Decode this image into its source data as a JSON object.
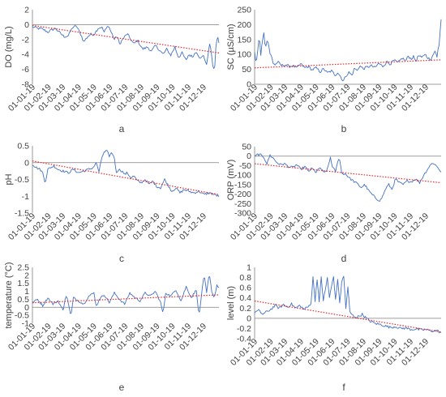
{
  "x_tick_labels": [
    "01-01-19",
    "01-02-19",
    "01-03-19",
    "01-04-19",
    "01-05-19",
    "01-06-19",
    "01-07-19",
    "01-08-19",
    "01-09-19",
    "01-10-19",
    "01-11-19",
    "01-12-19"
  ],
  "colors": {
    "series": "#4472c4",
    "trend": "#e8262a",
    "axis": "#7f7f7f",
    "text": "#404040"
  },
  "chart_data": [
    {
      "panel_label": "a",
      "type": "line",
      "ylabel": "DO (mg/L)",
      "ylim": [
        -8,
        2
      ],
      "yticks": [
        2,
        0,
        -2,
        -4,
        -6,
        -8
      ],
      "keypoints": [
        [
          0,
          -0.3
        ],
        [
          10,
          -0.5
        ],
        [
          20,
          -0.6
        ],
        [
          30,
          -1.0
        ],
        [
          38,
          -0.7
        ],
        [
          45,
          -0.5
        ],
        [
          55,
          -1.2
        ],
        [
          62,
          -1.6
        ],
        [
          70,
          -1.5
        ],
        [
          78,
          -0.4
        ],
        [
          86,
          -0.2
        ],
        [
          95,
          -1.4
        ],
        [
          100,
          -2.3
        ],
        [
          108,
          -1.6
        ],
        [
          114,
          -1.3
        ],
        [
          120,
          -1.3
        ],
        [
          128,
          -0.5
        ],
        [
          135,
          -0.3
        ],
        [
          140,
          -1.0
        ],
        [
          148,
          -0.1
        ],
        [
          155,
          -1.2
        ],
        [
          160,
          -2.0
        ],
        [
          165,
          -1.5
        ],
        [
          170,
          -2.6
        ],
        [
          178,
          -1.8
        ],
        [
          185,
          -1.2
        ],
        [
          190,
          -1.8
        ],
        [
          198,
          -2.6
        ],
        [
          205,
          -2.1
        ],
        [
          215,
          -3.3
        ],
        [
          225,
          -3.0
        ],
        [
          232,
          -3.6
        ],
        [
          240,
          -2.8
        ],
        [
          248,
          -3.4
        ],
        [
          255,
          -4.0
        ],
        [
          262,
          -3.3
        ],
        [
          270,
          -4.1
        ],
        [
          278,
          -3.0
        ],
        [
          285,
          -4.4
        ],
        [
          292,
          -3.8
        ],
        [
          300,
          -4.8
        ],
        [
          305,
          -4.0
        ],
        [
          312,
          -4.3
        ],
        [
          320,
          -3.6
        ],
        [
          328,
          -4.6
        ],
        [
          334,
          -4.1
        ],
        [
          340,
          -5.5
        ],
        [
          344,
          -3.2
        ],
        [
          347,
          -2.5
        ],
        [
          350,
          -4.5
        ],
        [
          353,
          -5.9
        ],
        [
          356,
          -5.6
        ],
        [
          359,
          -2.0
        ],
        [
          362,
          -1.8
        ],
        [
          364,
          -2.4
        ]
      ],
      "trend": [
        [
          0,
          -0.1
        ],
        [
          364,
          -3.8
        ]
      ]
    },
    {
      "panel_label": "b",
      "type": "line",
      "ylabel": "SC (µS/cm)",
      "ylim": [
        0,
        250
      ],
      "yticks": [
        250,
        200,
        150,
        100,
        50,
        0
      ],
      "keypoints": [
        [
          0,
          105
        ],
        [
          3,
          70
        ],
        [
          6,
          110
        ],
        [
          9,
          165
        ],
        [
          12,
          95
        ],
        [
          15,
          150
        ],
        [
          18,
          170
        ],
        [
          21,
          125
        ],
        [
          24,
          145
        ],
        [
          27,
          140
        ],
        [
          30,
          100
        ],
        [
          33,
          95
        ],
        [
          36,
          72
        ],
        [
          40,
          65
        ],
        [
          45,
          75
        ],
        [
          52,
          63
        ],
        [
          60,
          65
        ],
        [
          68,
          60
        ],
        [
          75,
          62
        ],
        [
          82,
          55
        ],
        [
          90,
          68
        ],
        [
          98,
          55
        ],
        [
          105,
          60
        ],
        [
          112,
          48
        ],
        [
          120,
          55
        ],
        [
          128,
          42
        ],
        [
          135,
          52
        ],
        [
          142,
          38
        ],
        [
          150,
          45
        ],
        [
          157,
          30
        ],
        [
          162,
          40
        ],
        [
          168,
          25
        ],
        [
          173,
          10
        ],
        [
          178,
          28
        ],
        [
          184,
          40
        ],
        [
          190,
          30
        ],
        [
          195,
          55
        ],
        [
          200,
          45
        ],
        [
          205,
          62
        ],
        [
          212,
          52
        ],
        [
          220,
          58
        ],
        [
          228,
          62
        ],
        [
          235,
          55
        ],
        [
          242,
          70
        ],
        [
          250,
          60
        ],
        [
          258,
          75
        ],
        [
          265,
          68
        ],
        [
          272,
          80
        ],
        [
          280,
          72
        ],
        [
          288,
          88
        ],
        [
          295,
          78
        ],
        [
          300,
          95
        ],
        [
          305,
          85
        ],
        [
          310,
          92
        ],
        [
          315,
          78
        ],
        [
          320,
          96
        ],
        [
          326,
          88
        ],
        [
          332,
          102
        ],
        [
          338,
          90
        ],
        [
          344,
          78
        ],
        [
          348,
          100
        ],
        [
          352,
          115
        ],
        [
          356,
          90
        ],
        [
          359,
          130
        ],
        [
          361,
          140
        ],
        [
          363,
          215
        ],
        [
          364,
          220
        ]
      ],
      "trend": [
        [
          0,
          55
        ],
        [
          364,
          82
        ]
      ]
    },
    {
      "panel_label": "c",
      "type": "line",
      "ylabel": "pH",
      "ylim": [
        -1.5,
        0.5
      ],
      "yticks": [
        0.5,
        0,
        -0.5,
        -1,
        -1.5
      ],
      "keypoints": [
        [
          0,
          -0.05
        ],
        [
          8,
          -0.15
        ],
        [
          15,
          -0.2
        ],
        [
          20,
          -0.3
        ],
        [
          25,
          -0.6
        ],
        [
          30,
          -0.2
        ],
        [
          35,
          -0.15
        ],
        [
          42,
          -0.1
        ],
        [
          50,
          -0.2
        ],
        [
          60,
          -0.25
        ],
        [
          70,
          -0.3
        ],
        [
          80,
          -0.2
        ],
        [
          90,
          -0.3
        ],
        [
          100,
          -0.25
        ],
        [
          110,
          -0.2
        ],
        [
          118,
          -0.15
        ],
        [
          125,
          0.0
        ],
        [
          130,
          -0.3
        ],
        [
          135,
          0.15
        ],
        [
          140,
          0.3
        ],
        [
          145,
          0.35
        ],
        [
          150,
          0.2
        ],
        [
          155,
          0.3
        ],
        [
          160,
          0.15
        ],
        [
          163,
          -0.3
        ],
        [
          168,
          -0.2
        ],
        [
          175,
          -0.25
        ],
        [
          180,
          -0.35
        ],
        [
          185,
          -0.3
        ],
        [
          192,
          -0.45
        ],
        [
          198,
          -0.4
        ],
        [
          205,
          -0.55
        ],
        [
          212,
          -0.6
        ],
        [
          220,
          -0.5
        ],
        [
          228,
          -0.65
        ],
        [
          235,
          -0.55
        ],
        [
          242,
          -0.7
        ],
        [
          250,
          -0.75
        ],
        [
          258,
          -0.5
        ],
        [
          266,
          -0.7
        ],
        [
          272,
          -0.85
        ],
        [
          280,
          -0.75
        ],
        [
          288,
          -0.9
        ],
        [
          296,
          -0.8
        ],
        [
          305,
          -0.85
        ],
        [
          315,
          -0.9
        ],
        [
          325,
          -0.85
        ],
        [
          335,
          -0.95
        ],
        [
          345,
          -0.9
        ],
        [
          355,
          -0.95
        ],
        [
          364,
          -1.0
        ]
      ],
      "trend": [
        [
          0,
          0.05
        ],
        [
          364,
          -0.95
        ]
      ]
    },
    {
      "panel_label": "d",
      "type": "line",
      "ylabel": "ORP (mV)",
      "ylim": [
        -300,
        50
      ],
      "yticks": [
        50,
        0,
        -50,
        -100,
        -150,
        -200,
        -250,
        -300
      ],
      "keypoints": [
        [
          0,
          -5
        ],
        [
          6,
          10
        ],
        [
          12,
          5
        ],
        [
          18,
          -5
        ],
        [
          24,
          -40
        ],
        [
          30,
          5
        ],
        [
          36,
          -10
        ],
        [
          42,
          -30
        ],
        [
          50,
          -45
        ],
        [
          58,
          -40
        ],
        [
          66,
          -55
        ],
        [
          75,
          -60
        ],
        [
          82,
          -45
        ],
        [
          90,
          -70
        ],
        [
          98,
          -55
        ],
        [
          105,
          -80
        ],
        [
          112,
          -65
        ],
        [
          120,
          -85
        ],
        [
          128,
          -60
        ],
        [
          135,
          -90
        ],
        [
          142,
          -70
        ],
        [
          148,
          -5
        ],
        [
          152,
          -60
        ],
        [
          158,
          -80
        ],
        [
          165,
          0
        ],
        [
          170,
          -90
        ],
        [
          178,
          -95
        ],
        [
          185,
          -115
        ],
        [
          192,
          -130
        ],
        [
          200,
          -145
        ],
        [
          208,
          -165
        ],
        [
          215,
          -150
        ],
        [
          222,
          -180
        ],
        [
          230,
          -205
        ],
        [
          238,
          -225
        ],
        [
          245,
          -235
        ],
        [
          250,
          -210
        ],
        [
          256,
          -170
        ],
        [
          262,
          -150
        ],
        [
          268,
          -175
        ],
        [
          275,
          -120
        ],
        [
          282,
          -140
        ],
        [
          290,
          -150
        ],
        [
          298,
          -130
        ],
        [
          306,
          -135
        ],
        [
          314,
          -120
        ],
        [
          322,
          -140
        ],
        [
          330,
          -100
        ],
        [
          336,
          -75
        ],
        [
          342,
          -50
        ],
        [
          348,
          -35
        ],
        [
          352,
          -45
        ],
        [
          358,
          -60
        ],
        [
          364,
          -85
        ]
      ],
      "trend": [
        [
          0,
          -40
        ],
        [
          364,
          -140
        ]
      ]
    },
    {
      "panel_label": "e",
      "type": "line",
      "ylabel": "temperature (°C)",
      "ylim": [
        -1,
        2.5
      ],
      "yticks": [
        2.5,
        2,
        1.5,
        1,
        0.5,
        0,
        -0.5,
        -1
      ],
      "keypoints": [
        [
          0,
          0.3
        ],
        [
          10,
          0.5
        ],
        [
          20,
          0.1
        ],
        [
          30,
          0.6
        ],
        [
          40,
          0.2
        ],
        [
          50,
          0.4
        ],
        [
          60,
          -0.2
        ],
        [
          65,
          0.8
        ],
        [
          70,
          0.3
        ],
        [
          75,
          -0.6
        ],
        [
          80,
          0.6
        ],
        [
          90,
          0.4
        ],
        [
          100,
          0.2
        ],
        [
          110,
          0.7
        ],
        [
          120,
          0.9
        ],
        [
          125,
          0.0
        ],
        [
          130,
          0.5
        ],
        [
          140,
          0.8
        ],
        [
          150,
          0.3
        ],
        [
          160,
          0.9
        ],
        [
          170,
          0.5
        ],
        [
          180,
          0.2
        ],
        [
          190,
          0.9
        ],
        [
          200,
          0.6
        ],
        [
          210,
          0.4
        ],
        [
          220,
          0.9
        ],
        [
          230,
          0.7
        ],
        [
          240,
          1.0
        ],
        [
          250,
          0.3
        ],
        [
          255,
          -0.4
        ],
        [
          260,
          0.9
        ],
        [
          270,
          0.7
        ],
        [
          280,
          1.1
        ],
        [
          290,
          0.4
        ],
        [
          300,
          1.3
        ],
        [
          310,
          0.6
        ],
        [
          320,
          1.1
        ],
        [
          325,
          -0.6
        ],
        [
          330,
          0.8
        ],
        [
          335,
          2.0
        ],
        [
          340,
          0.9
        ],
        [
          345,
          2.1
        ],
        [
          350,
          1.0
        ],
        [
          355,
          0.6
        ],
        [
          360,
          1.4
        ],
        [
          364,
          1.2
        ]
      ],
      "trend": [
        [
          0,
          0.28
        ],
        [
          364,
          0.78
        ]
      ]
    },
    {
      "panel_label": "f",
      "type": "line",
      "ylabel": "level (m)",
      "ylim": [
        -0.4,
        1
      ],
      "yticks": [
        1,
        0.8,
        0.6,
        0.4,
        0.2,
        0,
        -0.2,
        -0.4
      ],
      "keypoints": [
        [
          0,
          0.12
        ],
        [
          8,
          0.15
        ],
        [
          16,
          0.08
        ],
        [
          24,
          0.13
        ],
        [
          32,
          0.18
        ],
        [
          40,
          0.25
        ],
        [
          48,
          0.2
        ],
        [
          56,
          0.27
        ],
        [
          64,
          0.22
        ],
        [
          72,
          0.28
        ],
        [
          80,
          0.2
        ],
        [
          88,
          0.25
        ],
        [
          96,
          0.18
        ],
        [
          104,
          0.22
        ],
        [
          110,
          0.3
        ],
        [
          114,
          0.8
        ],
        [
          118,
          0.35
        ],
        [
          122,
          0.78
        ],
        [
          126,
          0.3
        ],
        [
          130,
          0.82
        ],
        [
          134,
          0.35
        ],
        [
          138,
          0.55
        ],
        [
          142,
          0.8
        ],
        [
          146,
          0.4
        ],
        [
          150,
          0.62
        ],
        [
          154,
          0.82
        ],
        [
          158,
          0.35
        ],
        [
          162,
          0.78
        ],
        [
          166,
          0.3
        ],
        [
          170,
          0.72
        ],
        [
          174,
          0.82
        ],
        [
          178,
          0.2
        ],
        [
          182,
          0.6
        ],
        [
          186,
          0.12
        ],
        [
          192,
          0.05
        ],
        [
          200,
          0.02
        ],
        [
          210,
          0.08
        ],
        [
          218,
          0.0
        ],
        [
          226,
          -0.06
        ],
        [
          235,
          -0.1
        ],
        [
          245,
          -0.12
        ],
        [
          255,
          -0.15
        ],
        [
          265,
          -0.18
        ],
        [
          275,
          -0.16
        ],
        [
          285,
          -0.2
        ],
        [
          295,
          -0.19
        ],
        [
          305,
          -0.22
        ],
        [
          315,
          -0.21
        ],
        [
          325,
          -0.23
        ],
        [
          335,
          -0.22
        ],
        [
          345,
          -0.25
        ],
        [
          355,
          -0.24
        ],
        [
          364,
          -0.28
        ]
      ],
      "trend": [
        [
          0,
          0.34
        ],
        [
          364,
          -0.27
        ]
      ]
    }
  ]
}
